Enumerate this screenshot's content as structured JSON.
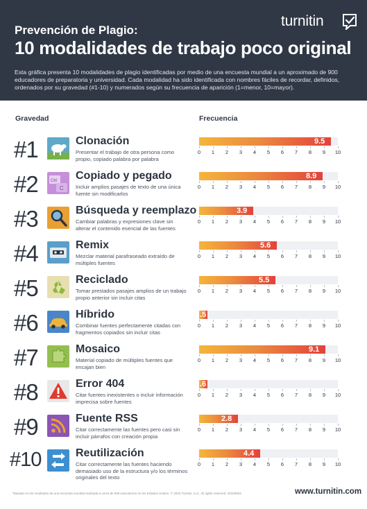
{
  "header": {
    "subtitle": "Prevención de Plagio:",
    "title": "10 modalidades de trabajo poco original",
    "description": "Esta gráfica presenta 10 modalidades de plagio identificadas por medio de una encuesta mundial a un aproximado de 900 educadores de preparatoria y universidad. Cada modalidad ha sido identificada con nombres fáciles de recordar, definidos, ordenados por su gravedad (#1-10) y numerados según su frecuencia de aparición (1=menor, 10=mayor).",
    "logo_text": "turnitin"
  },
  "columns": {
    "severity": "Gravedad",
    "frequency": "Frecuencia"
  },
  "colors": {
    "header_bg": "#303845",
    "bar_start": "#f5b53a",
    "bar_end": "#e2423b",
    "text_dark": "#2c3440"
  },
  "chart_data": {
    "type": "bar",
    "orientation": "horizontal",
    "xlim": [
      0,
      10
    ],
    "ticks": [
      "0",
      "1",
      "2",
      "3",
      "4",
      "5",
      "6",
      "7",
      "8",
      "9",
      "10"
    ],
    "categories": [
      "Clonación",
      "Copiado y pegado",
      "Búsqueda y reemplazo",
      "Remix",
      "Reciclado",
      "Híbrido",
      "Mosaico",
      "Error 404",
      "Fuente RSS",
      "Reutilización"
    ],
    "values": [
      9.5,
      8.9,
      3.9,
      5.6,
      5.5,
      0.5,
      9.1,
      0.6,
      2.8,
      4.4
    ],
    "value_labels": [
      "9.5",
      "8.9",
      "3.9",
      "5.6",
      "5.5",
      ".5",
      "9.1",
      ".6",
      "2.8",
      "4.4"
    ]
  },
  "items": [
    {
      "rank": "#1",
      "name": "Clonación",
      "description": "Presentar el trabajo de otra persona como propio, copiado palabra por palabra",
      "icon": "sheep-icon"
    },
    {
      "rank": "#2",
      "name": "Copiado y pegado",
      "description": "Incluir amplios pasajes de texto de una única fuente sin modificarlos",
      "icon": "ctrl-c-keys-icon"
    },
    {
      "rank": "#3",
      "name": "Búsqueda y reemplazo",
      "description": "Cambiar palabras y expresiones clave sin alterar el contenido esencial de las fuentes",
      "icon": "magnifier-icon"
    },
    {
      "rank": "#4",
      "name": "Remix",
      "description": "Mezclar material parafraseado extraído de múltiples fuentes",
      "icon": "cassette-icon"
    },
    {
      "rank": "#5",
      "name": "Reciclado",
      "description": "Tomar prestados pasajes amplios de un trabajo propio anterior sin incluir citas",
      "icon": "recycle-icon"
    },
    {
      "rank": "#6",
      "name": "Híbrido",
      "description": "Combinar fuentes perfectamente citadas con fragmentos copiados sin incluir citas",
      "icon": "car-icon"
    },
    {
      "rank": "#7",
      "name": "Mosaico",
      "description": "Material copiado de múltiples fuentes que encajan bien",
      "icon": "puzzle-icon"
    },
    {
      "rank": "#8",
      "name": "Error 404",
      "description": "Citar fuentes inexistentes o incluir información imprecisa sobre fuentes",
      "icon": "warning-icon"
    },
    {
      "rank": "#9",
      "name": "Fuente RSS",
      "description": "Citar correctamente las fuentes pero casi sin incluir párrafos con creación propia",
      "icon": "rss-icon"
    },
    {
      "rank": "#10",
      "name": "Reutilización",
      "description": "Citar correctamente las fuentes haciendo demasiado uso de la estructura y/o los términos originales del texto",
      "icon": "reuse-arrows-icon"
    }
  ],
  "footer": {
    "footnote": "*Basado en los resultados de una encuesta mundial realizada a cerca de 900 educadores en los Estados Unidos.   © 2015 Turnitin, LLC. All rights reserved. 20150923",
    "url": "www.turnitin.com"
  }
}
